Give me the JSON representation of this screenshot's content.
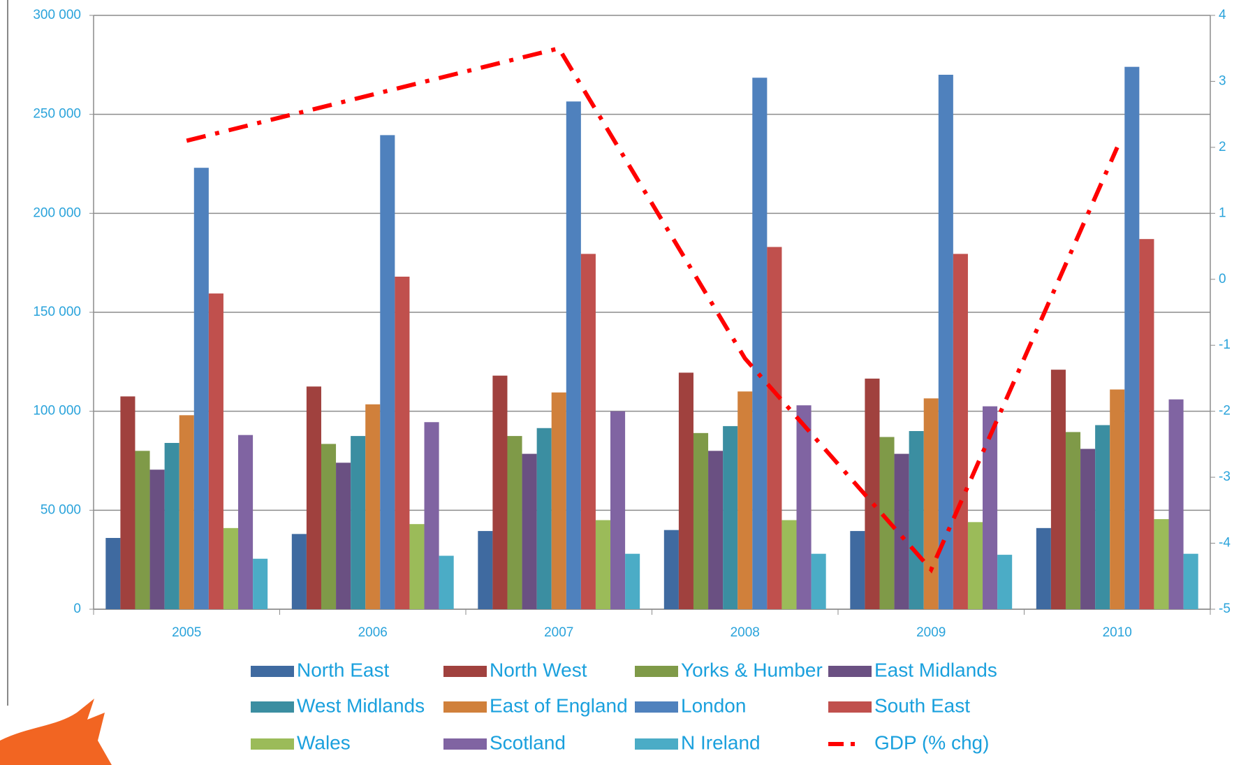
{
  "chart_data": {
    "type": "bar",
    "categories": [
      "2005",
      "2006",
      "2007",
      "2008",
      "2009",
      "2010"
    ],
    "ylim": [
      0,
      300000
    ],
    "yticks": [
      0,
      {
        "value": 50000,
        "label": "50 000"
      },
      {
        "value": 100000,
        "label": "100 000"
      },
      {
        "value": 150000,
        "label": "150 000"
      },
      {
        "value": 200000,
        "label": "200 000"
      },
      {
        "value": 250000,
        "label": "250 000"
      },
      {
        "value": 300000,
        "label": "300 000"
      }
    ],
    "y2lim": [
      -5,
      4
    ],
    "y2ticks": [
      -5,
      -4,
      -3,
      -2,
      -1,
      0,
      1,
      2,
      3,
      4
    ],
    "grid": true,
    "legend": "bottom",
    "series": [
      {
        "name": "North East",
        "color": "#3f6aa0",
        "values": [
          36000,
          38000,
          39500,
          40000,
          39500,
          41000
        ]
      },
      {
        "name": "North West",
        "color": "#a0413e",
        "values": [
          107500,
          112500,
          118000,
          119500,
          116500,
          121000
        ]
      },
      {
        "name": "Yorks & Humber",
        "color": "#7f9a48",
        "values": [
          80000,
          83500,
          87500,
          89000,
          87000,
          89500
        ]
      },
      {
        "name": "East Midlands",
        "color": "#6a5082",
        "values": [
          70500,
          74000,
          78500,
          80000,
          78500,
          81000
        ]
      },
      {
        "name": "West Midlands",
        "color": "#3b8ea1",
        "values": [
          84000,
          87500,
          91500,
          92500,
          90000,
          93000
        ]
      },
      {
        "name": "East of England",
        "color": "#d0803b",
        "values": [
          98000,
          103500,
          109500,
          110000,
          106500,
          111000
        ]
      },
      {
        "name": "London",
        "color": "#4f81bd",
        "values": [
          223000,
          239500,
          256500,
          268500,
          270000,
          274000
        ]
      },
      {
        "name": "South East",
        "color": "#c0504d",
        "values": [
          159500,
          168000,
          179500,
          183000,
          179500,
          187000
        ]
      },
      {
        "name": "Wales",
        "color": "#9bbb59",
        "values": [
          41000,
          43000,
          45000,
          45000,
          44000,
          45500
        ]
      },
      {
        "name": "Scotland",
        "color": "#8064a2",
        "values": [
          88000,
          94500,
          100000,
          103000,
          102500,
          106000
        ]
      },
      {
        "name": "N Ireland",
        "color": "#4bacc6",
        "values": [
          25500,
          27000,
          28000,
          28000,
          27500,
          28000
        ]
      },
      {
        "name": "GDP (% chg)",
        "color": "#ff0000",
        "type": "line",
        "axis": "y2",
        "values": [
          2.1,
          2.8,
          3.5,
          -1.2,
          -4.4,
          2.0
        ]
      }
    ]
  }
}
